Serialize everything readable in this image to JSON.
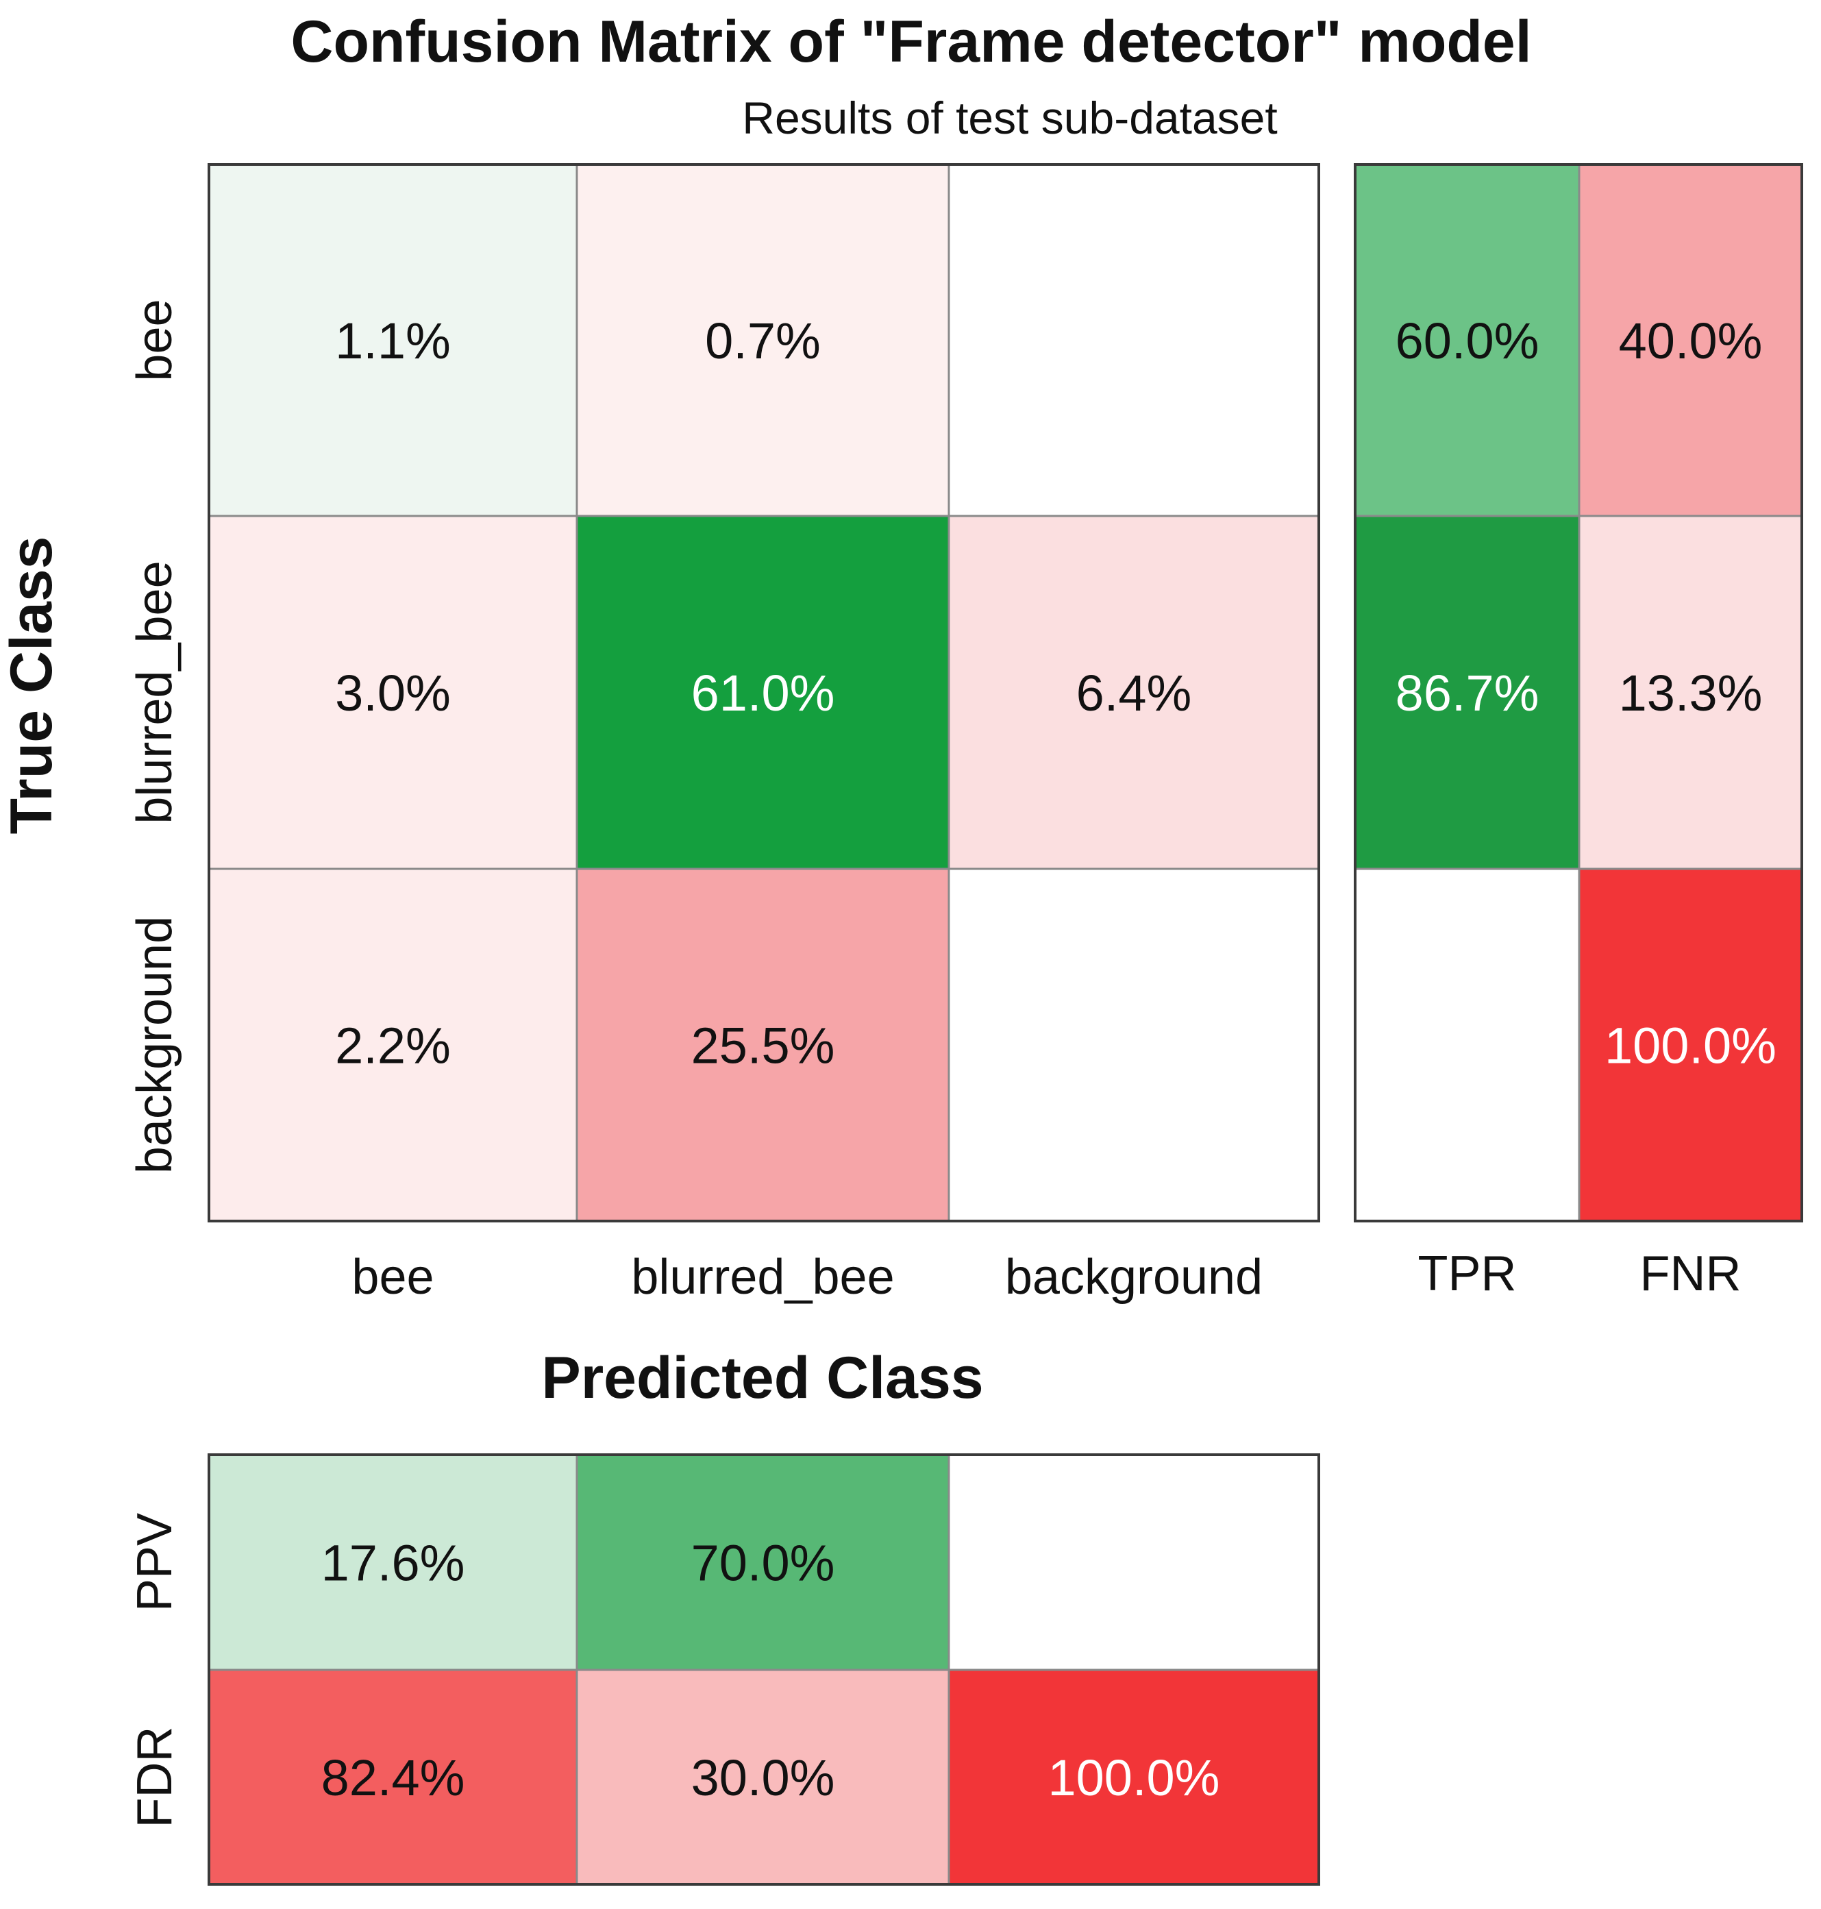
{
  "chart_data": {
    "type": "heatmap",
    "title": "Confusion Matrix of \"Frame detector\" model",
    "subtitle": "Results of test sub-dataset",
    "xlabel": "Predicted Class",
    "ylabel": "True Class",
    "classes": [
      "bee",
      "blurred_bee",
      "background"
    ],
    "matrix": {
      "values": [
        [
          1.1,
          0.7,
          null
        ],
        [
          3.0,
          61.0,
          6.4
        ],
        [
          2.2,
          25.5,
          null
        ]
      ],
      "labels": [
        [
          "1.1%",
          "0.7%",
          ""
        ],
        [
          "3.0%",
          "61.0%",
          "6.4%"
        ],
        [
          "2.2%",
          "25.5%",
          ""
        ]
      ],
      "colors": [
        [
          "#eef6f1",
          "#fdf0ef",
          "#ffffff"
        ],
        [
          "#fdecec",
          "#149f3e",
          "#fbdfe0"
        ],
        [
          "#fdecec",
          "#f6a5a8",
          "#ffffff"
        ]
      ],
      "text_colors": [
        [
          "#111111",
          "#111111",
          "#111111"
        ],
        [
          "#111111",
          "#ffffff",
          "#111111"
        ],
        [
          "#111111",
          "#111111",
          "#111111"
        ]
      ]
    },
    "row_summary": {
      "columns": [
        "TPR",
        "FNR"
      ],
      "values": [
        [
          60.0,
          40.0
        ],
        [
          86.7,
          13.3
        ],
        [
          null,
          100.0
        ]
      ],
      "labels": [
        [
          "60.0%",
          "40.0%"
        ],
        [
          "86.7%",
          "13.3%"
        ],
        [
          "",
          "100.0%"
        ]
      ],
      "colors": [
        [
          "#6cc387",
          "#f6a5a8"
        ],
        [
          "#1f9b43",
          "#fbdfe0"
        ],
        [
          "#ffffff",
          "#f23538"
        ]
      ],
      "text_colors": [
        [
          "#111111",
          "#111111"
        ],
        [
          "#ffffff",
          "#111111"
        ],
        [
          "#111111",
          "#ffffff"
        ]
      ]
    },
    "column_summary": {
      "rows": [
        "PPV",
        "FDR"
      ],
      "values": [
        [
          17.6,
          70.0,
          null
        ],
        [
          82.4,
          30.0,
          100.0
        ]
      ],
      "labels": [
        [
          "17.6%",
          "70.0%",
          ""
        ],
        [
          "82.4%",
          "30.0%",
          "100.0%"
        ]
      ],
      "colors": [
        [
          "#cce9d6",
          "#57b875",
          "#ffffff"
        ],
        [
          "#f35e5f",
          "#f9bbbc",
          "#f23538"
        ]
      ],
      "text_colors": [
        [
          "#111111",
          "#111111",
          "#111111"
        ],
        [
          "#111111",
          "#111111",
          "#ffffff"
        ]
      ]
    }
  }
}
